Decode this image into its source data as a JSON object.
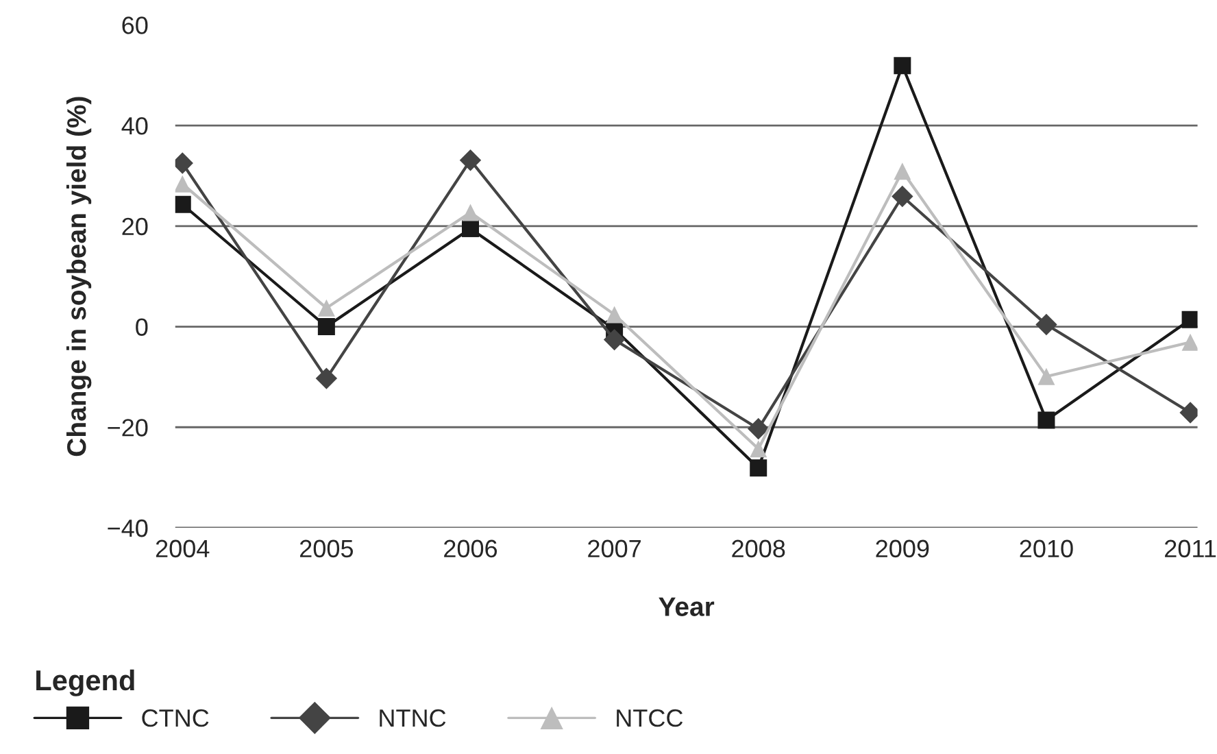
{
  "chart_data": {
    "type": "line",
    "xlabel": "Year",
    "ylabel": "Change in soybean yield (%)",
    "legend_title": "Legend",
    "categories": [
      "2004",
      "2005",
      "2006",
      "2007",
      "2008",
      "2009",
      "2010",
      "2011"
    ],
    "series": [
      {
        "name": "CTNC",
        "color": "#1a1a1a",
        "marker": "square",
        "values": [
          24.3,
          0,
          19.5,
          -0.5,
          -28.1,
          51.9,
          -18.6,
          1.4
        ]
      },
      {
        "name": "NTNC",
        "color": "#444444",
        "marker": "diamond",
        "values": [
          32.5,
          -10.3,
          33.1,
          -2.6,
          -20.3,
          25.9,
          0.4,
          -17.1
        ]
      },
      {
        "name": "NTCC",
        "color": "#bdbdbd",
        "marker": "triangle",
        "values": [
          28.4,
          3.7,
          22.7,
          2.4,
          -24.3,
          30.9,
          -9.9,
          -3.1
        ]
      }
    ],
    "ylim": [
      -40,
      60
    ],
    "yticks": [
      {
        "value": -40,
        "label": "−40"
      },
      {
        "value": -20,
        "label": "−20"
      },
      0,
      20,
      40,
      60
    ],
    "grid": "y",
    "legend": "bottom",
    "line_style": "solid"
  }
}
